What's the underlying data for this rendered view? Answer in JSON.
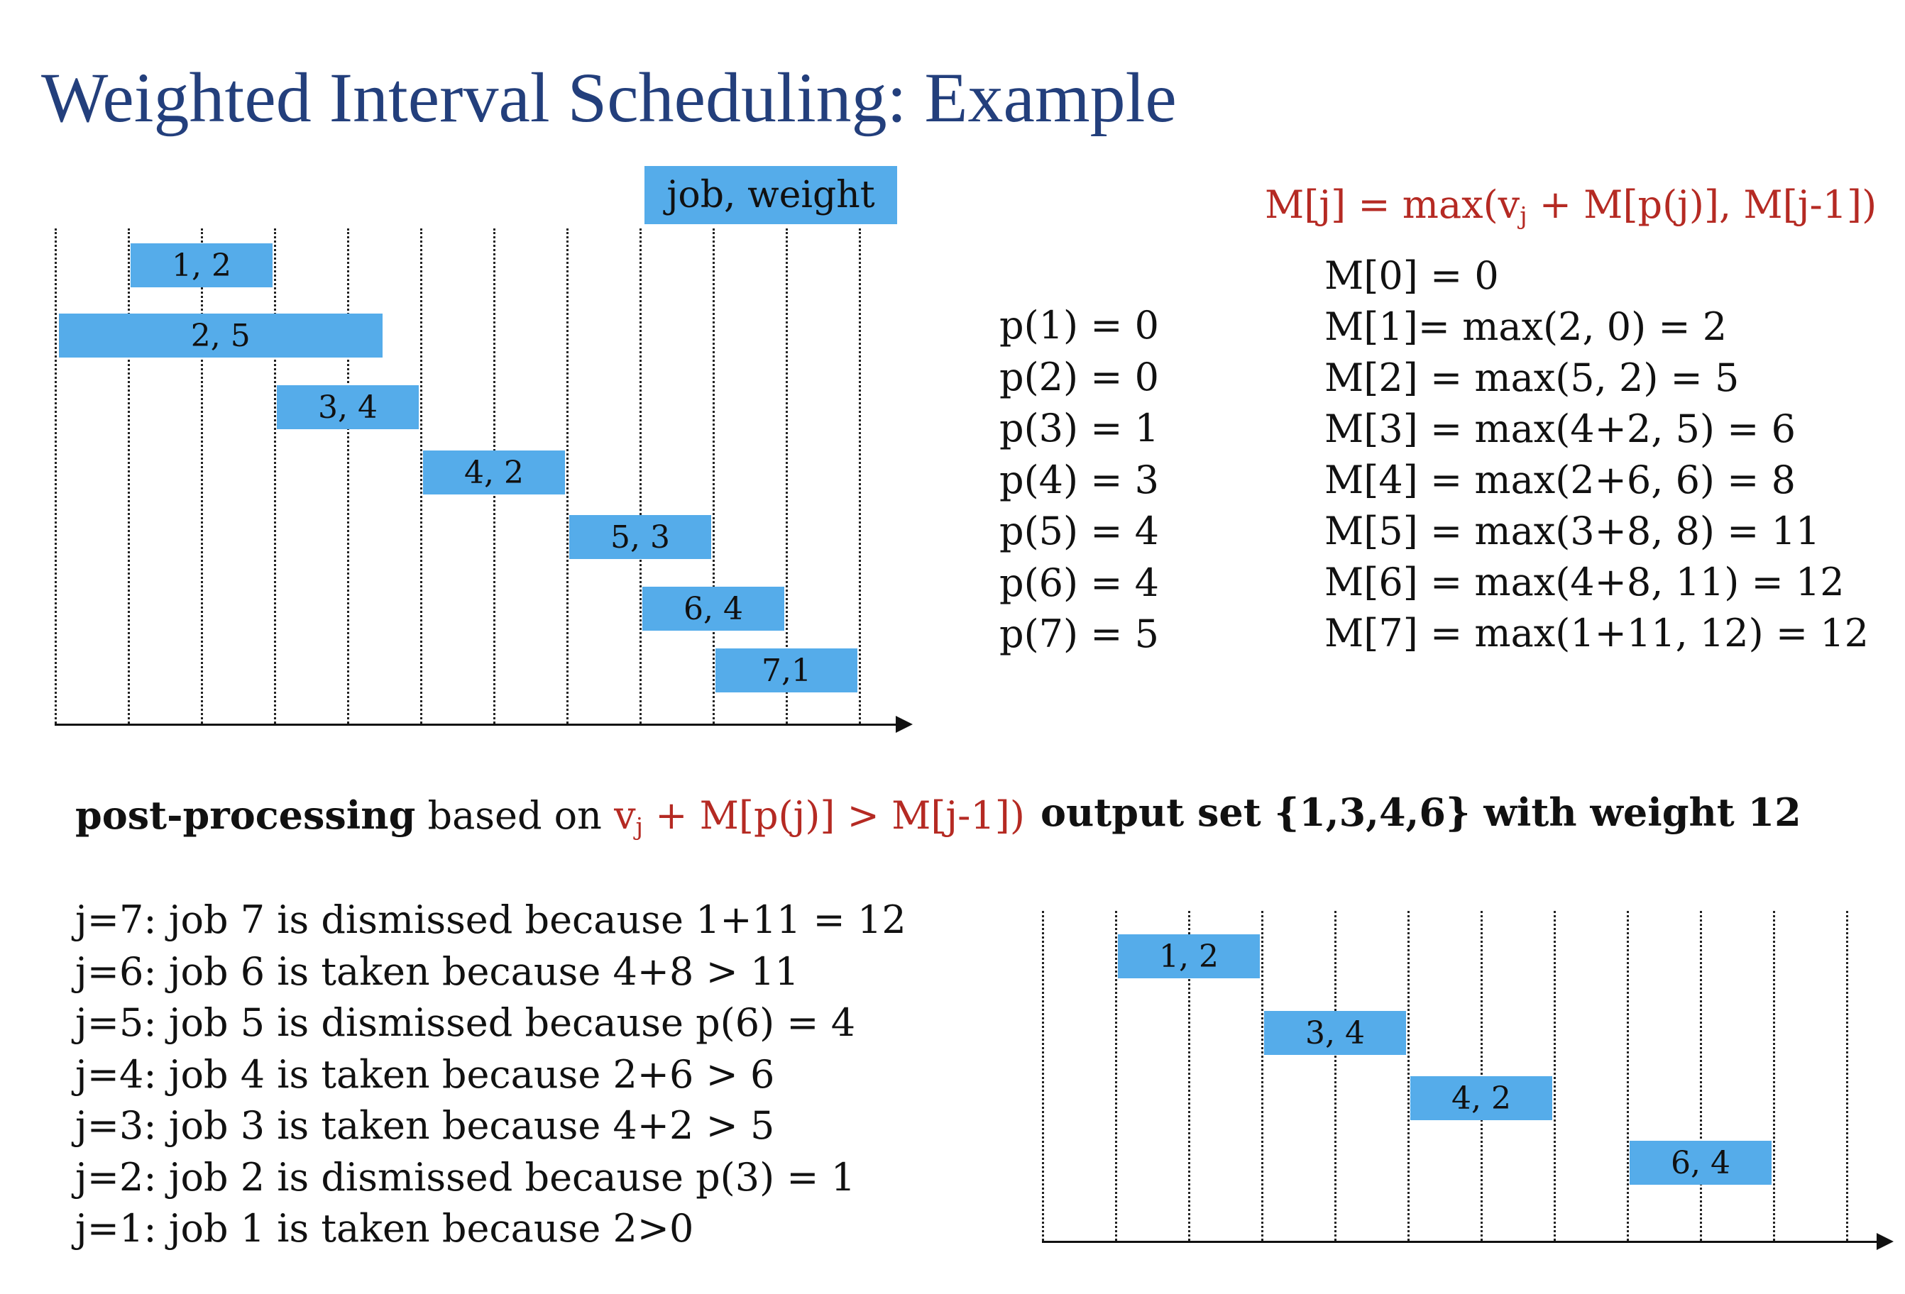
{
  "title": "Weighted Interval Scheduling:  Example",
  "legend_label": "job, weight",
  "recurrence": {
    "lhs": "M[j] = max(v",
    "sub": "j",
    "rhs": " + M[p(j)], M[j-1])"
  },
  "p_values": [
    "p(1) = 0",
    "p(2) = 0",
    "p(3) = 1",
    "p(4) = 3",
    "p(5) = 4",
    "p(6) = 4",
    "p(7) = 5"
  ],
  "m_values": [
    "M[0] = 0",
    "M[1]= max(2, 0) = 2",
    "M[2] = max(5, 2) = 5",
    "M[3] = max(4+2, 5) = 6",
    "M[4] = max(2+6, 6) = 8",
    "M[5] = max(3+8, 8) = 11",
    "M[6] = max(4+8, 11) = 12",
    "M[7] = max(1+11, 12) = 12"
  ],
  "jobs": [
    {
      "label": "1, 2",
      "job": 1,
      "weight": 2,
      "start": 1,
      "finish": 3
    },
    {
      "label": "2, 5",
      "job": 2,
      "weight": 5,
      "start": 0,
      "finish": 4.5
    },
    {
      "label": "3, 4",
      "job": 3,
      "weight": 4,
      "start": 3,
      "finish": 5
    },
    {
      "label": "4, 2",
      "job": 4,
      "weight": 2,
      "start": 5,
      "finish": 7
    },
    {
      "label": "5, 3",
      "job": 5,
      "weight": 3,
      "start": 7,
      "finish": 9
    },
    {
      "label": "6, 4",
      "job": 6,
      "weight": 4,
      "start": 8,
      "finish": 10
    },
    {
      "label": "7,1",
      "job": 7,
      "weight": 1,
      "start": 9,
      "finish": 11
    }
  ],
  "postprocessing": {
    "heading_bold": "post-processing",
    "heading_plain": " based on ",
    "heading_red_pre": "v",
    "heading_red_sub": "j",
    "heading_red_post": " + M[p(j)] > M[j-1])",
    "lines": [
      "j=7: job 7 is dismissed because 1+11 = 12",
      "j=6: job 6 is taken because 4+8 > 11",
      "j=5: job 5 is dismissed because p(6) = 4",
      "j=4: job 4 is taken because 2+6 > 6",
      "j=3: job 3 is taken because 4+2 > 5",
      "j=2: job 2 is dismissed because p(3) = 1",
      "j=1: job 1 is taken because 2>0"
    ]
  },
  "output": {
    "heading": "output set {1,3,4,6} with weight 12",
    "jobs": [
      {
        "label": "1, 2",
        "start": 1,
        "finish": 3
      },
      {
        "label": "3, 4",
        "start": 3,
        "finish": 5
      },
      {
        "label": "4, 2",
        "start": 5,
        "finish": 7
      },
      {
        "label": "6, 4",
        "start": 8,
        "finish": 10
      }
    ]
  }
}
